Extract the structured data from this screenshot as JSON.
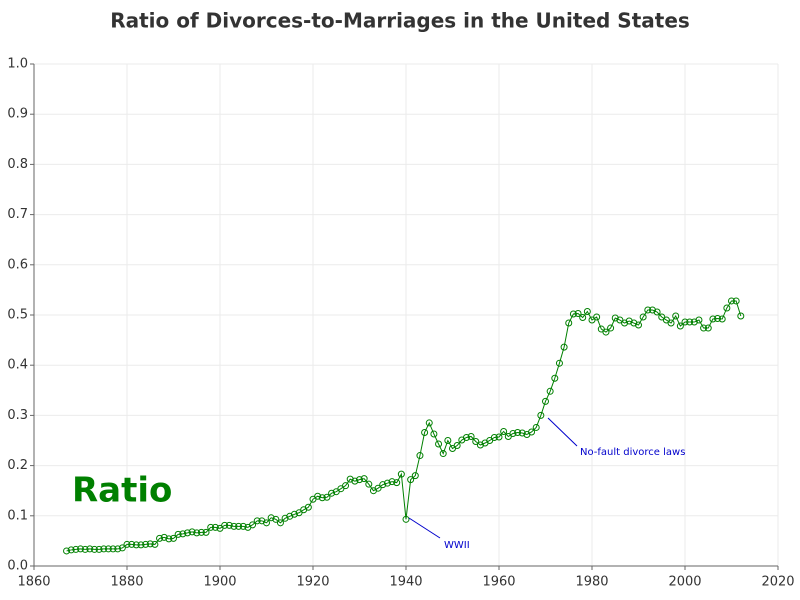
{
  "chart_data": {
    "type": "line",
    "title": "Ratio of Divorces-to-Marriages in the United States",
    "x": [
      1867,
      1868,
      1869,
      1870,
      1871,
      1872,
      1873,
      1874,
      1875,
      1876,
      1877,
      1878,
      1879,
      1880,
      1881,
      1882,
      1883,
      1884,
      1885,
      1886,
      1887,
      1888,
      1889,
      1890,
      1891,
      1892,
      1893,
      1894,
      1895,
      1896,
      1897,
      1898,
      1899,
      1900,
      1901,
      1902,
      1903,
      1904,
      1905,
      1906,
      1907,
      1908,
      1909,
      1910,
      1911,
      1912,
      1913,
      1914,
      1915,
      1916,
      1917,
      1918,
      1919,
      1920,
      1921,
      1922,
      1923,
      1924,
      1925,
      1926,
      1927,
      1928,
      1929,
      1930,
      1931,
      1932,
      1933,
      1934,
      1935,
      1936,
      1937,
      1938,
      1939,
      1940,
      1941,
      1942,
      1943,
      1944,
      1945,
      1946,
      1947,
      1948,
      1949,
      1950,
      1951,
      1952,
      1953,
      1954,
      1955,
      1956,
      1957,
      1958,
      1959,
      1960,
      1961,
      1962,
      1963,
      1964,
      1965,
      1966,
      1967,
      1968,
      1969,
      1970,
      1971,
      1972,
      1973,
      1974,
      1975,
      1976,
      1977,
      1978,
      1979,
      1980,
      1981,
      1982,
      1983,
      1984,
      1985,
      1986,
      1987,
      1988,
      1989,
      1990,
      1991,
      1992,
      1993,
      1994,
      1995,
      1996,
      1997,
      1998,
      1999,
      2000,
      2001,
      2002,
      2003,
      2004,
      2005,
      2006,
      2007,
      2008,
      2009,
      2010,
      2011,
      2012
    ],
    "series": [
      {
        "name": "Ratio",
        "color": "#008000",
        "values": [
          0.03,
          0.032,
          0.033,
          0.034,
          0.033,
          0.034,
          0.033,
          0.033,
          0.034,
          0.034,
          0.034,
          0.034,
          0.036,
          0.043,
          0.043,
          0.042,
          0.042,
          0.043,
          0.044,
          0.043,
          0.055,
          0.057,
          0.054,
          0.055,
          0.063,
          0.064,
          0.066,
          0.068,
          0.066,
          0.067,
          0.067,
          0.077,
          0.077,
          0.075,
          0.081,
          0.081,
          0.079,
          0.079,
          0.079,
          0.077,
          0.082,
          0.09,
          0.09,
          0.086,
          0.096,
          0.093,
          0.086,
          0.095,
          0.099,
          0.103,
          0.106,
          0.112,
          0.117,
          0.133,
          0.139,
          0.136,
          0.137,
          0.145,
          0.148,
          0.154,
          0.16,
          0.173,
          0.169,
          0.172,
          0.174,
          0.163,
          0.15,
          0.155,
          0.162,
          0.165,
          0.168,
          0.166,
          0.183,
          0.093,
          0.172,
          0.18,
          0.22,
          0.266,
          0.285,
          0.263,
          0.243,
          0.224,
          0.25,
          0.234,
          0.24,
          0.251,
          0.256,
          0.258,
          0.248,
          0.241,
          0.245,
          0.25,
          0.256,
          0.257,
          0.268,
          0.258,
          0.264,
          0.266,
          0.265,
          0.262,
          0.267,
          0.276,
          0.3,
          0.328,
          0.348,
          0.374,
          0.404,
          0.436,
          0.484,
          0.502,
          0.503,
          0.495,
          0.507,
          0.49,
          0.496,
          0.472,
          0.466,
          0.474,
          0.494,
          0.49,
          0.484,
          0.488,
          0.484,
          0.48,
          0.496,
          0.51,
          0.51,
          0.506,
          0.496,
          0.49,
          0.484,
          0.498,
          0.478,
          0.486,
          0.486,
          0.486,
          0.49,
          0.474,
          0.474,
          0.492,
          0.493,
          0.492,
          0.514,
          0.528,
          0.528,
          0.498
        ]
      }
    ],
    "annotations": [
      "WWII",
      "No-fault divorce laws"
    ],
    "xlim": [
      1860,
      2020
    ],
    "xticks": [
      1860,
      1880,
      1900,
      1920,
      1940,
      1960,
      1980,
      2000,
      2020
    ],
    "ylim": [
      0,
      1
    ],
    "yticks": [
      {
        "value": 0,
        "label": "0.0"
      },
      0.1,
      0.2,
      0.3,
      0.4,
      0.5,
      0.6,
      0.7,
      0.8,
      0.9,
      {
        "value": 1,
        "label": "1.0"
      }
    ],
    "grid": true
  }
}
